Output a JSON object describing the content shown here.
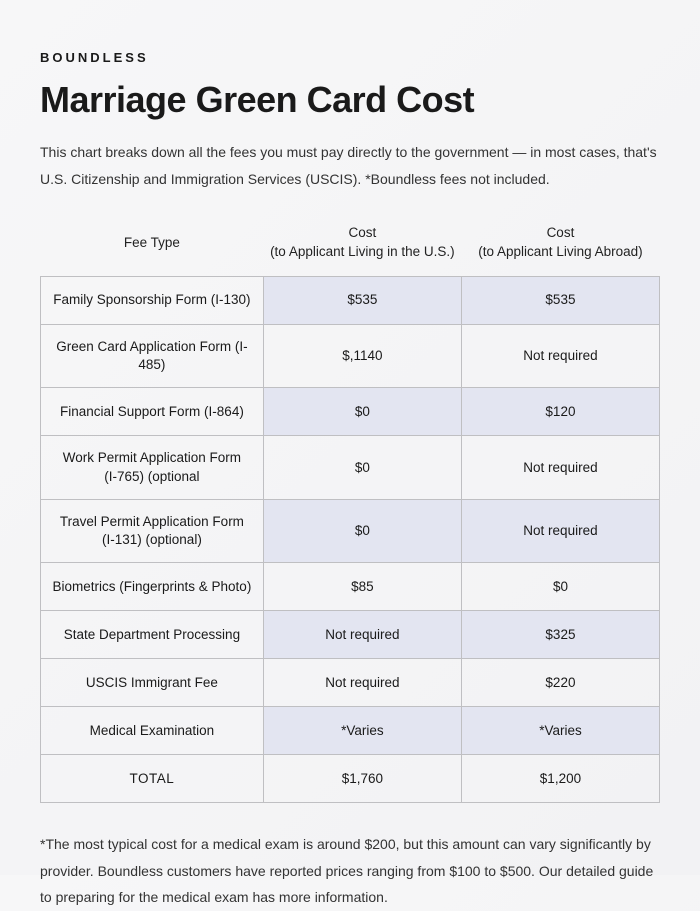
{
  "brand": "BOUNDLESS",
  "title": "Marriage Green Card Cost",
  "intro": "This chart breaks down all the fees you must pay directly to the government — in most cases, that's U.S. Citizenship and Immigration Services (USCIS). *Boundless fees not included.",
  "table": {
    "columns": [
      "Fee Type",
      "Cost\n(to Applicant Living in the U.S.)",
      "Cost\n(to Applicant Living Abroad)"
    ],
    "rows": [
      {
        "label": "Family Sponsorship Form (I-130)",
        "us": "$535",
        "abroad": "$535",
        "shaded": true
      },
      {
        "label": "Green Card Application Form (I-485)",
        "us": "$,1140",
        "abroad": "Not required",
        "shaded": false
      },
      {
        "label": "Financial Support Form (I-864)",
        "us": "$0",
        "abroad": "$120",
        "shaded": true
      },
      {
        "label": "Work Permit Application Form\n(I-765) (optional",
        "us": "$0",
        "abroad": "Not required",
        "shaded": false
      },
      {
        "label": "Travel Permit Application Form\n(I-131) (optional)",
        "us": "$0",
        "abroad": "Not required",
        "shaded": true
      },
      {
        "label": "Biometrics (Fingerprints & Photo)",
        "us": "$85",
        "abroad": "$0",
        "shaded": false
      },
      {
        "label": "State Department Processing",
        "us": "Not required",
        "abroad": "$325",
        "shaded": true
      },
      {
        "label": "USCIS Immigrant Fee",
        "us": "Not required",
        "abroad": "$220",
        "shaded": false
      },
      {
        "label": "Medical Examination",
        "us": "*Varies",
        "abroad": "*Varies",
        "shaded": true
      }
    ],
    "total": {
      "label": "TOTAL",
      "us": "$1,760",
      "abroad": "$1,200"
    },
    "shaded_color": "#e3e5f1",
    "border_color": "#bfbfc2"
  },
  "footnote": "*The most typical cost for a medical exam is around $200, but this amount can vary significantly by provider. Boundless customers have reported prices ranging from $100 to $500. Our detailed guide to preparing for the medical exam has more information."
}
